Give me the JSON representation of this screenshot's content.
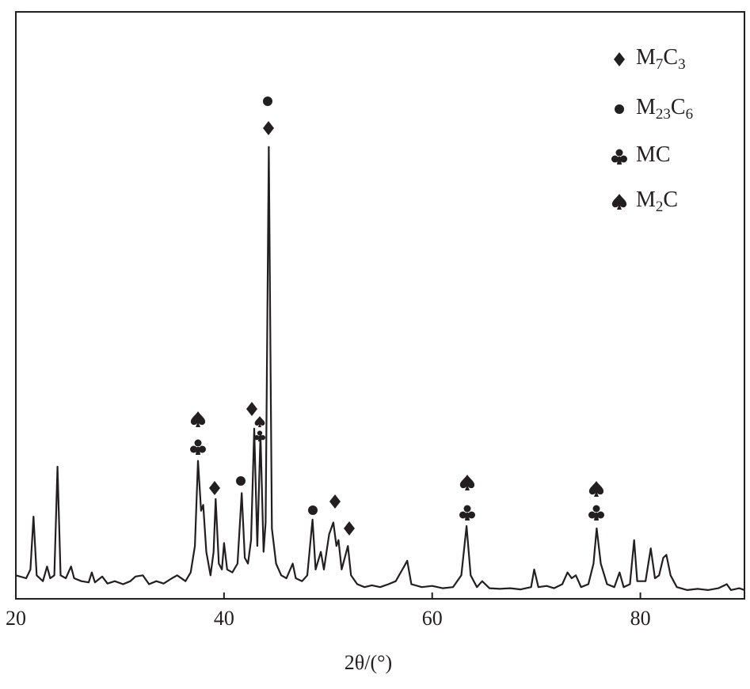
{
  "chart_data": {
    "type": "line",
    "xlabel": "2θ/(°)",
    "xlim": [
      20,
      90
    ],
    "xticks": [
      20,
      40,
      60,
      80
    ],
    "ylim": [
      0,
      100
    ],
    "color": "#231f20",
    "x": [
      20.0,
      21.0,
      21.4,
      21.7,
      22.0,
      22.6,
      23.0,
      23.3,
      23.7,
      24.0,
      24.3,
      24.8,
      25.3,
      25.6,
      26.3,
      27.0,
      27.3,
      27.6,
      28.3,
      28.8,
      29.5,
      30.3,
      31.0,
      31.5,
      32.2,
      32.8,
      33.5,
      34.2,
      35.0,
      35.5,
      36.3,
      36.8,
      37.2,
      37.5,
      37.8,
      38.0,
      38.3,
      38.7,
      39.0,
      39.2,
      39.5,
      39.8,
      40.0,
      40.3,
      40.8,
      41.3,
      41.7,
      42.0,
      42.3,
      42.6,
      42.9,
      43.2,
      43.5,
      43.8,
      44.0,
      44.3,
      44.6,
      45.0,
      45.5,
      46.0,
      46.6,
      46.9,
      47.5,
      48.0,
      48.5,
      48.8,
      49.3,
      49.6,
      50.1,
      50.5,
      50.8,
      51.0,
      51.3,
      51.9,
      52.2,
      52.8,
      53.5,
      54.2,
      55.0,
      55.8,
      56.5,
      57.3,
      57.6,
      58.0,
      59.0,
      60.0,
      61.0,
      62.0,
      62.8,
      63.3,
      63.7,
      64.3,
      64.8,
      65.5,
      66.5,
      67.5,
      68.5,
      69.5,
      69.8,
      70.2,
      71.0,
      71.7,
      72.5,
      73.0,
      73.4,
      73.8,
      74.3,
      75.0,
      75.5,
      75.8,
      76.2,
      76.8,
      77.5,
      78.0,
      78.4,
      79.0,
      79.4,
      79.7,
      80.5,
      81.0,
      81.4,
      81.8,
      82.2,
      82.5,
      82.9,
      83.5,
      84.5,
      85.5,
      86.5,
      87.5,
      88.3,
      88.7,
      89.5,
      90.0
    ],
    "values": [
      4,
      3.5,
      5,
      14,
      4,
      3,
      5.5,
      3.5,
      4,
      22.5,
      4,
      3.5,
      5.5,
      3.5,
      3,
      2.8,
      4.5,
      2.8,
      3.8,
      2.6,
      3,
      2.5,
      3,
      3.8,
      4,
      2.5,
      3,
      2.6,
      3.5,
      4,
      3,
      4.5,
      9,
      23.5,
      15,
      16,
      8,
      4,
      8,
      17,
      6,
      5,
      9.5,
      5,
      4.5,
      6,
      18,
      7,
      6,
      10,
      29,
      9,
      28,
      8,
      13,
      77,
      12,
      6,
      4,
      3.5,
      6,
      3.5,
      3,
      4,
      13.5,
      5,
      8,
      5,
      11,
      13,
      9,
      10,
      5,
      9,
      4,
      2.5,
      2,
      2.3,
      2,
      2.5,
      3,
      5.5,
      6.5,
      2.5,
      2,
      2.2,
      1.8,
      2,
      4,
      12.4,
      4,
      2,
      3,
      1.8,
      1.7,
      1.8,
      1.6,
      2,
      5,
      2,
      2.2,
      1.8,
      2.5,
      4.5,
      3.5,
      4,
      2,
      2.5,
      6,
      12,
      6,
      2.5,
      2,
      4.5,
      2,
      2.5,
      10,
      3,
      3,
      8.6,
      3.5,
      4,
      7,
      7.5,
      4,
      2,
      1.5,
      1.7,
      1.5,
      1.8,
      2.5,
      1.5,
      1.8,
      1.5
    ],
    "legend_entries": [
      {
        "name": "M7C3",
        "marker": "diamond"
      },
      {
        "name": "M23C6",
        "marker": "circle"
      },
      {
        "name": "MC",
        "marker": "club"
      },
      {
        "name": "M2C",
        "marker": "spade"
      }
    ]
  }
}
